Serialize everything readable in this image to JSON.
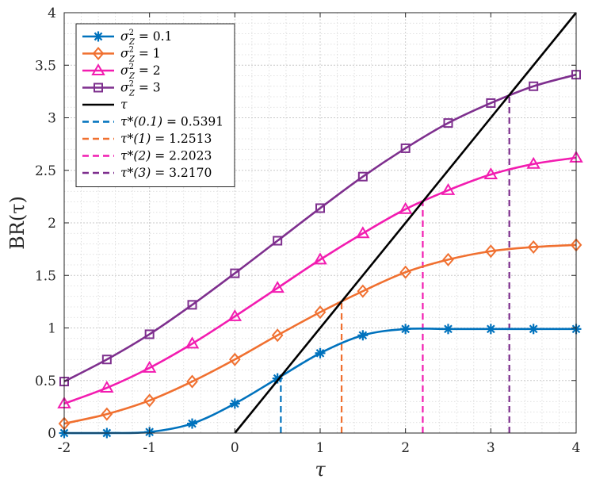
{
  "chart_data": {
    "type": "line",
    "xlabel": "τ",
    "ylabel": "BR(τ)",
    "xlim": [
      -2,
      4
    ],
    "ylim": [
      0,
      4
    ],
    "xticks": [
      "-2",
      "-1",
      "0",
      "1",
      "2",
      "3",
      "4"
    ],
    "yticks": [
      "0",
      "0.5",
      "1",
      "1.5",
      "2",
      "2.5",
      "3",
      "3.5",
      "4"
    ],
    "grid": "on (major and minor, dotted)",
    "legend_position": "top-left",
    "series": [
      {
        "name": "σ²_Z = 0.1",
        "color": "#0072BD",
        "marker": "asterisk",
        "x": [
          -2,
          -1.5,
          -1,
          -0.5,
          0,
          0.5,
          1,
          1.5,
          2,
          2.5,
          3,
          3.5,
          4
        ],
        "values": [
          0,
          0,
          0.01,
          0.09,
          0.28,
          0.52,
          0.76,
          0.93,
          0.99,
          0.99,
          0.99,
          0.99,
          0.99
        ]
      },
      {
        "name": "σ²_Z = 1",
        "color": "#F07030",
        "marker": "diamond",
        "x": [
          -2,
          -1.5,
          -1,
          -0.5,
          0,
          0.5,
          1,
          1.5,
          2,
          2.5,
          3,
          3.5,
          4
        ],
        "values": [
          0.09,
          0.18,
          0.31,
          0.49,
          0.7,
          0.93,
          1.15,
          1.35,
          1.53,
          1.65,
          1.73,
          1.77,
          1.79
        ]
      },
      {
        "name": "σ²_Z = 2",
        "color": "#F21CB0",
        "marker": "triangle",
        "x": [
          -2,
          -1.5,
          -1,
          -0.5,
          0,
          0.5,
          1,
          1.5,
          2,
          2.5,
          3,
          3.5,
          4
        ],
        "values": [
          0.28,
          0.43,
          0.62,
          0.85,
          1.11,
          1.38,
          1.65,
          1.9,
          2.13,
          2.31,
          2.46,
          2.56,
          2.62
        ]
      },
      {
        "name": "σ²_Z = 3",
        "color": "#7E2F8E",
        "marker": "square",
        "x": [
          -2,
          -1.5,
          -1,
          -0.5,
          0,
          0.5,
          1,
          1.5,
          2,
          2.5,
          3,
          3.5,
          4
        ],
        "values": [
          0.49,
          0.7,
          0.94,
          1.22,
          1.52,
          1.83,
          2.14,
          2.44,
          2.71,
          2.95,
          3.14,
          3.3,
          3.41
        ]
      },
      {
        "name": "τ",
        "color": "#000000",
        "marker": "none",
        "x": [
          0,
          4
        ],
        "values": [
          0,
          4
        ]
      }
    ],
    "vlines": [
      {
        "name": "τ*(0.1) = 0.5391",
        "x": 0.5391,
        "y_top": 0.5391,
        "color": "#0072BD",
        "style": "dashed"
      },
      {
        "name": "τ*(1) = 1.2513",
        "x": 1.2513,
        "y_top": 1.2513,
        "color": "#F07030",
        "style": "dashed"
      },
      {
        "name": "τ*(2) = 2.2023",
        "x": 2.2023,
        "y_top": 2.2023,
        "color": "#F21CB0",
        "style": "dashed"
      },
      {
        "name": "τ*(3) = 3.2170",
        "x": 3.217,
        "y_top": 3.217,
        "color": "#7E2F8E",
        "style": "dashed"
      }
    ],
    "legend": [
      {
        "label_main": "σ",
        "label_tail": " = 0.1",
        "math": "sigma",
        "color": "#0072BD",
        "marker": "asterisk",
        "line": "solid"
      },
      {
        "label_main": "σ",
        "label_tail": " = 1",
        "math": "sigma",
        "color": "#F07030",
        "marker": "diamond",
        "line": "solid"
      },
      {
        "label_main": "σ",
        "label_tail": " = 2",
        "math": "sigma",
        "color": "#F21CB0",
        "marker": "triangle",
        "line": "solid"
      },
      {
        "label_main": "σ",
        "label_tail": " = 3",
        "math": "sigma",
        "color": "#7E2F8E",
        "marker": "square",
        "line": "solid"
      },
      {
        "label_main": "τ",
        "label_tail": "",
        "math": "tau",
        "color": "#000000",
        "marker": "none",
        "line": "solid"
      },
      {
        "label_main": "τ*(0.1)",
        "label_tail": " = 0.5391",
        "math": "tau-star",
        "color": "#0072BD",
        "marker": "none",
        "line": "dashed"
      },
      {
        "label_main": "τ*(1)",
        "label_tail": " = 1.2513",
        "math": "tau-star",
        "color": "#F07030",
        "marker": "none",
        "line": "dashed"
      },
      {
        "label_main": "τ*(2)",
        "label_tail": " = 2.2023",
        "math": "tau-star",
        "color": "#F21CB0",
        "marker": "none",
        "line": "dashed"
      },
      {
        "label_main": "τ*(3)",
        "label_tail": " = 3.2170",
        "math": "tau-star",
        "color": "#7E2F8E",
        "marker": "none",
        "line": "dashed"
      }
    ]
  }
}
